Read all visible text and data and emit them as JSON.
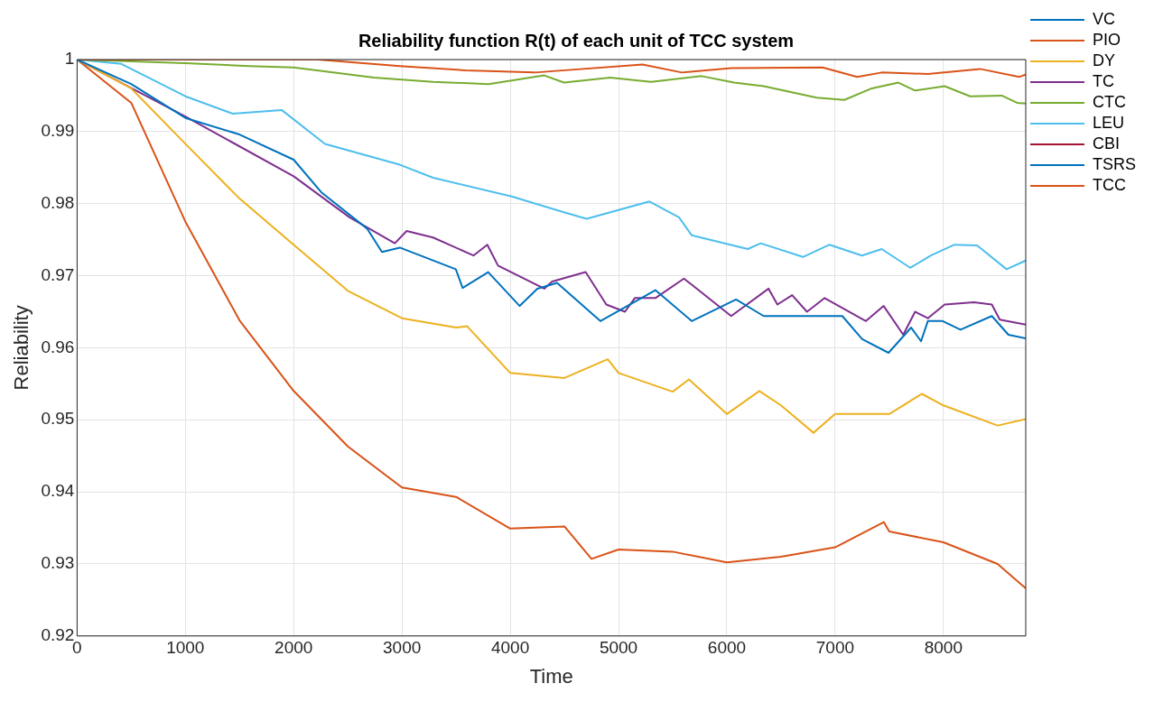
{
  "chart_data": {
    "type": "line",
    "title": "Reliability function R(t) of each unit of TCC system",
    "xlabel": "Time",
    "ylabel": "Reliability",
    "xlim": [
      0,
      8760
    ],
    "xticks": [
      0,
      1000,
      2000,
      3000,
      4000,
      5000,
      6000,
      7000,
      8000
    ],
    "ylim": [
      0.92,
      1
    ],
    "yticks": [
      0.92,
      0.93,
      0.94,
      0.95,
      0.96,
      0.97,
      0.98,
      0.99,
      1
    ],
    "grid": true,
    "legend": "top right",
    "marker": "none",
    "line_style": "solid",
    "series": [
      {
        "name": "VC",
        "color": "#0072bd",
        "x": [
          0,
          500,
          1000,
          1500,
          2000,
          2254,
          2680,
          2815,
          2980,
          3497,
          3560,
          3796,
          4087,
          4250,
          4432,
          4832,
          5340,
          5676,
          6085,
          6340,
          7066,
          7250,
          7493,
          7702,
          7793,
          7856,
          7993,
          8157,
          8447,
          8600,
          8760
        ],
        "values": [
          1,
          0.9966,
          0.9919,
          0.9896,
          0.9861,
          0.9816,
          0.9765,
          0.9733,
          0.9739,
          0.9709,
          0.9683,
          0.9705,
          0.9658,
          0.9682,
          0.969,
          0.9637,
          0.968,
          0.9637,
          0.9667,
          0.9644,
          0.9644,
          0.9612,
          0.9593,
          0.9628,
          0.9609,
          0.9637,
          0.9637,
          0.9625,
          0.9644,
          0.9618,
          0.9613
        ]
      },
      {
        "name": "PIO",
        "color": "#d95319",
        "x": [
          0,
          2225,
          2980,
          3588,
          4223,
          5222,
          5586,
          6040,
          6885,
          7203,
          7430,
          7856,
          8338,
          8701,
          8760
        ],
        "values": [
          1,
          1,
          0.9991,
          0.9985,
          0.9982,
          0.9993,
          0.9982,
          0.9988,
          0.9989,
          0.9976,
          0.9982,
          0.998,
          0.9987,
          0.9976,
          0.9979
        ]
      },
      {
        "name": "DY",
        "color": "#edb120",
        "x": [
          0,
          500,
          1000,
          1500,
          2000,
          2500,
          3000,
          3500,
          3600,
          4000,
          4500,
          4900,
          5000,
          5500,
          5650,
          6000,
          6300,
          6500,
          6800,
          7000,
          7500,
          7800,
          8000,
          8500,
          8760
        ],
        "values": [
          1,
          0.996,
          0.9883,
          0.9807,
          0.9743,
          0.9679,
          0.9641,
          0.9628,
          0.963,
          0.9565,
          0.9558,
          0.9584,
          0.9565,
          0.9539,
          0.9556,
          0.9508,
          0.954,
          0.952,
          0.9482,
          0.9508,
          0.9508,
          0.9536,
          0.952,
          0.9492,
          0.9501
        ]
      },
      {
        "name": "TC",
        "color": "#7e2f8e",
        "x": [
          0,
          1000,
          2000,
          2516,
          2934,
          3043,
          3288,
          3660,
          3788,
          3887,
          4314,
          4387,
          4696,
          4887,
          5059,
          5150,
          5340,
          5604,
          6040,
          6385,
          6467,
          6603,
          6740,
          6903,
          7284,
          7448,
          7629,
          7738,
          7856,
          8011,
          8283,
          8447,
          8520,
          8760
        ],
        "values": [
          1,
          0.9921,
          0.9838,
          0.9781,
          0.9745,
          0.9762,
          0.9753,
          0.9728,
          0.9743,
          0.9714,
          0.9682,
          0.9692,
          0.9705,
          0.966,
          0.965,
          0.9669,
          0.9669,
          0.9696,
          0.9644,
          0.9682,
          0.966,
          0.9673,
          0.965,
          0.9669,
          0.9637,
          0.9658,
          0.9618,
          0.965,
          0.9641,
          0.966,
          0.9663,
          0.966,
          0.9639,
          0.9632
        ]
      },
      {
        "name": "CTC",
        "color": "#77ac30",
        "x": [
          0,
          1000,
          1589,
          2000,
          2743,
          3288,
          3800,
          4314,
          4496,
          4923,
          5300,
          5767,
          6067,
          6340,
          6830,
          7085,
          7339,
          7584,
          7738,
          8011,
          8247,
          8538,
          8680,
          8760
        ],
        "values": [
          1,
          0.9995,
          0.9991,
          0.9989,
          0.9975,
          0.9969,
          0.9966,
          0.9978,
          0.9968,
          0.9975,
          0.9969,
          0.9977,
          0.9968,
          0.9963,
          0.9947,
          0.9944,
          0.996,
          0.9968,
          0.9957,
          0.9963,
          0.9949,
          0.995,
          0.994,
          0.9939
        ]
      },
      {
        "name": "LEU",
        "color": "#4dbeee",
        "x": [
          0,
          409,
          1000,
          1435,
          1889,
          2289,
          2980,
          3288,
          4014,
          4496,
          4705,
          5286,
          5558,
          5676,
          6194,
          6312,
          6703,
          6948,
          7248,
          7430,
          7693,
          7884,
          8102,
          8311,
          8583,
          8760
        ],
        "values": [
          1,
          0.9994,
          0.9949,
          0.9925,
          0.993,
          0.9883,
          0.9854,
          0.9836,
          0.981,
          0.9788,
          0.9779,
          0.9803,
          0.9781,
          0.9756,
          0.9737,
          0.9745,
          0.9726,
          0.9743,
          0.9728,
          0.9737,
          0.9711,
          0.9728,
          0.9743,
          0.9742,
          0.9709,
          0.9721
        ]
      },
      {
        "name": "CBI",
        "color": "#a2142f"
      },
      {
        "name": "TSRS",
        "color": "#0072bd"
      },
      {
        "name": "TCC",
        "color": "#d95319",
        "x": [
          0,
          500,
          1000,
          1500,
          2000,
          2500,
          3000,
          3500,
          4000,
          4500,
          4750,
          5000,
          5500,
          6000,
          6500,
          7000,
          7450,
          7500,
          8000,
          8500,
          8760
        ],
        "values": [
          1,
          0.994,
          0.9775,
          0.9638,
          0.954,
          0.9463,
          0.9406,
          0.9393,
          0.9349,
          0.9352,
          0.9307,
          0.932,
          0.9317,
          0.9302,
          0.931,
          0.9323,
          0.9358,
          0.9345,
          0.933,
          0.93,
          0.9266
        ]
      }
    ]
  }
}
